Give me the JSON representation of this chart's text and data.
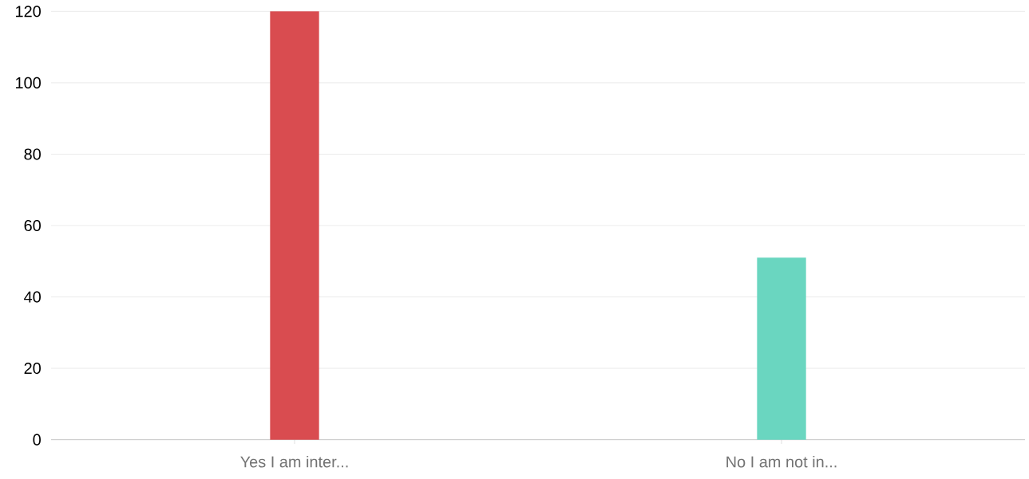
{
  "chart_data": {
    "type": "bar",
    "categories": [
      "Yes I am inter...",
      "No I am not in..."
    ],
    "values": [
      120,
      51
    ],
    "colors": [
      "#d94c50",
      "#6ad6c0"
    ],
    "ylim": [
      0,
      120
    ],
    "yticks": [
      0,
      20,
      40,
      60,
      80,
      100,
      120
    ],
    "grid": "y"
  }
}
